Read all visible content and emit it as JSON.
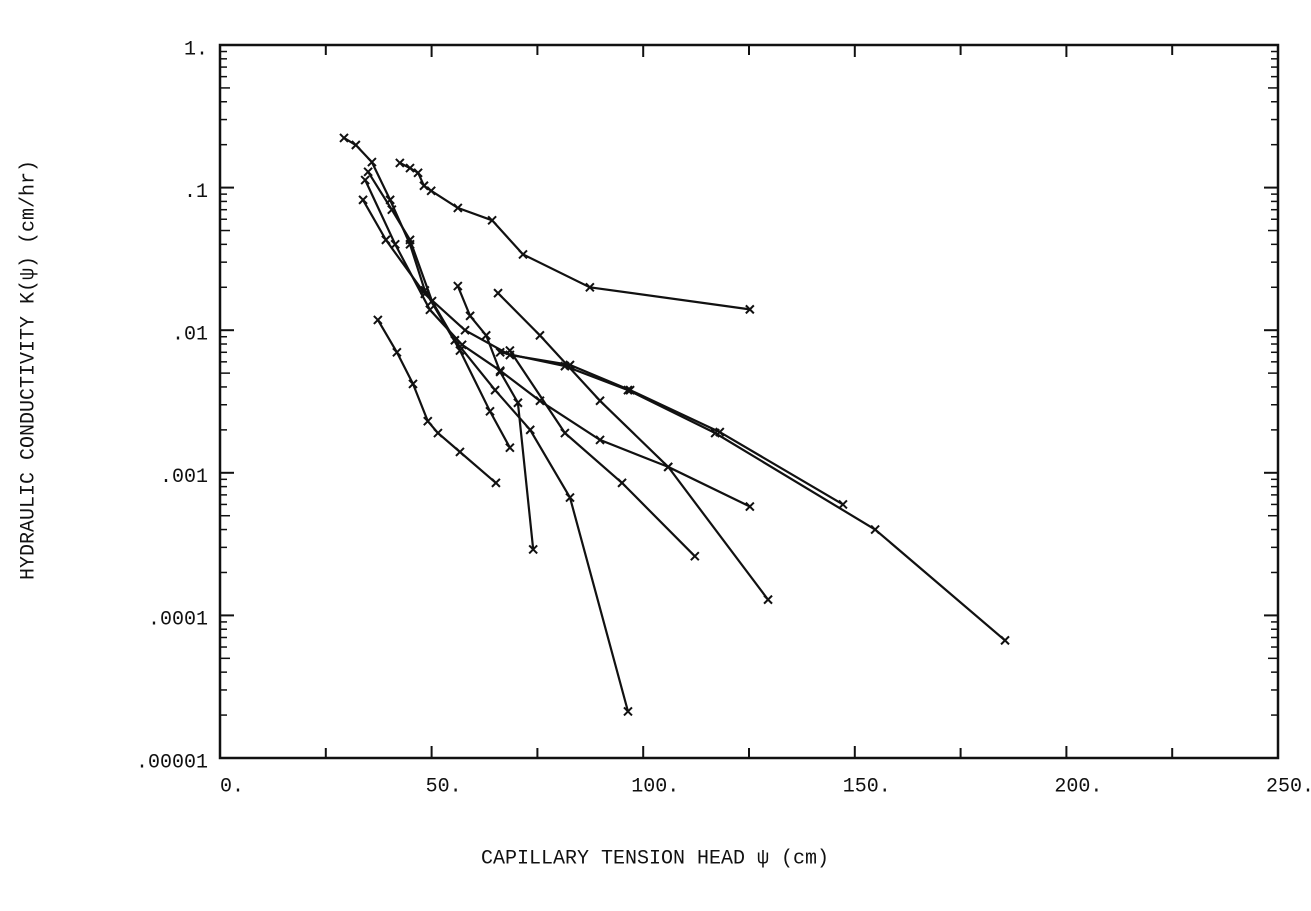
{
  "chart_data": {
    "type": "line",
    "xlabel": "CAPILLARY TENSION HEAD  ψ    (cm)",
    "ylabel": "HYDRAULIC CONDUCTIVITY  K(ψ)    (cm/hr)",
    "xlim": [
      0,
      250
    ],
    "xticks": [
      {
        "value": 0,
        "label": "0."
      },
      {
        "value": 50,
        "label": "50."
      },
      {
        "value": 100,
        "label": "100."
      },
      {
        "value": 150,
        "label": "150."
      },
      {
        "value": 200,
        "label": "200."
      },
      {
        "value": 250,
        "label": "250."
      }
    ],
    "ylim": [
      1e-05,
      1
    ],
    "yticks": [
      {
        "value": 1,
        "label": "1."
      },
      {
        "value": 0.1,
        "label": ".1"
      },
      {
        "value": 0.01,
        "label": ".01"
      },
      {
        "value": 0.001,
        "label": ".001"
      },
      {
        "value": 0.0001,
        "label": ".0001"
      },
      {
        "value": 1e-05,
        "label": ".00001"
      }
    ],
    "log_y": true,
    "grid": false,
    "series": [
      {
        "color": "#111",
        "x": [
          42.5,
          44.9,
          46.8,
          48.2,
          49.9,
          56.2,
          64.3,
          71.6,
          87.4,
          125.2
        ],
        "values": [
          0.149,
          0.137,
          0.127,
          0.103,
          0.095,
          0.072,
          0.059,
          0.034,
          0.02,
          0.014
        ]
      },
      {
        "color": "#111",
        "x": [
          29.3,
          32.1,
          35.9,
          40.2,
          44.9,
          48.4,
          56.7,
          63.8,
          68.5
        ],
        "values": [
          0.223,
          0.199,
          0.151,
          0.082,
          0.04,
          0.019,
          0.0072,
          0.0027,
          0.0015
        ]
      },
      {
        "color": "#111",
        "x": [
          35.0,
          40.6,
          44.9,
          50.1,
          55.5,
          65.0,
          73.3,
          82.7,
          96.4
        ],
        "values": [
          0.129,
          0.07,
          0.043,
          0.016,
          0.0085,
          0.0038,
          0.002,
          0.00067,
          2.12e-05
        ]
      },
      {
        "color": "#111",
        "x": [
          33.8,
          39.2,
          48.4,
          57.9,
          68.5,
          82.7,
          96.9,
          118.1,
          147.2
        ],
        "values": [
          0.082,
          0.043,
          0.018,
          0.01,
          0.0067,
          0.0057,
          0.0038,
          0.00193,
          0.0006
        ]
      },
      {
        "color": "#111",
        "x": [
          34.3,
          41.4,
          49.6,
          57.2,
          66.2,
          75.6,
          89.8,
          105.9,
          129.5
        ],
        "values": [
          0.113,
          0.04,
          0.0139,
          0.0079,
          0.0052,
          0.0032,
          0.0017,
          0.0011,
          0.000129
        ]
      },
      {
        "color": "#111",
        "x": [
          37.3,
          41.8,
          45.6,
          49.1,
          51.5,
          56.7,
          65.2
        ],
        "values": [
          0.0118,
          0.007,
          0.0042,
          0.0023,
          0.0019,
          0.0014,
          0.00085
        ]
      },
      {
        "color": "#111",
        "x": [
          56.2,
          59.1,
          62.9,
          66.2,
          70.4,
          74.0
        ],
        "values": [
          0.0204,
          0.0126,
          0.0092,
          0.0051,
          0.0031,
          0.00029
        ]
      },
      {
        "color": "#111",
        "x": [
          65.7,
          75.6,
          89.8,
          105.9,
          125.2
        ],
        "values": [
          0.0182,
          0.0092,
          0.0032,
          0.0011,
          0.00058
        ]
      },
      {
        "color": "#111",
        "x": [
          66.2,
          81.5,
          96.4,
          117.0,
          154.8,
          185.5
        ],
        "values": [
          0.007,
          0.0056,
          0.0038,
          0.0019,
          0.0004,
          6.68e-05
        ]
      },
      {
        "color": "#111",
        "x": [
          68.5,
          81.5,
          95.0,
          112.2
        ],
        "values": [
          0.0072,
          0.0019,
          0.00085,
          0.00026
        ]
      }
    ]
  }
}
